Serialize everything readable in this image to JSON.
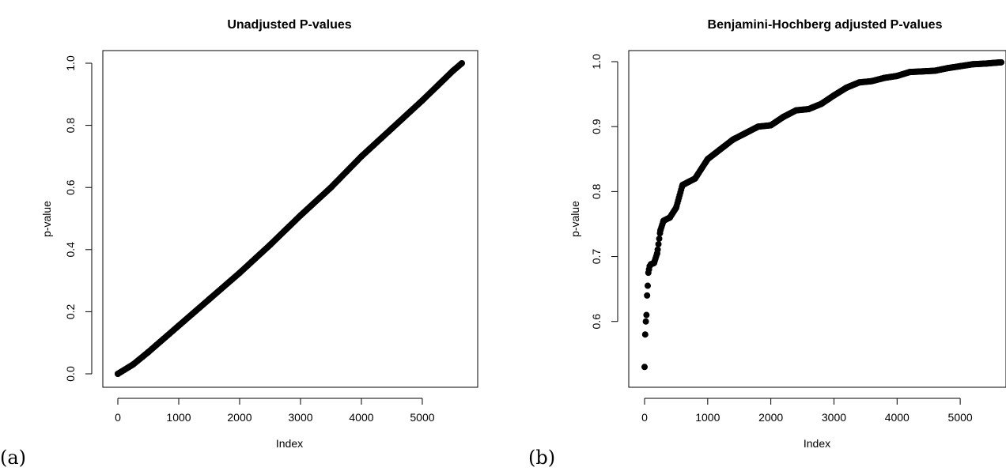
{
  "figure": {
    "panels": [
      {
        "label": "(a)"
      },
      {
        "label": "(b)"
      }
    ]
  },
  "chart_data": [
    {
      "type": "scatter",
      "title": "Unadjusted P-values",
      "xlabel": "Index",
      "ylabel": "p-value",
      "xlim": [
        0,
        5650
      ],
      "ylim": [
        0,
        1.0
      ],
      "x_ticks": [
        0,
        1000,
        2000,
        3000,
        4000,
        5000
      ],
      "y_ticks": [
        0.0,
        0.2,
        0.4,
        0.6,
        0.8,
        1.0
      ],
      "x_tick_labels": [
        "0",
        "1000",
        "2000",
        "3000",
        "4000",
        "5000"
      ],
      "y_tick_labels": [
        "0.0",
        "0.2",
        "0.4",
        "0.6",
        "0.8",
        "1.0"
      ],
      "marker_color": "#000000",
      "n_points": 5650,
      "series": [
        {
          "x": [
            0,
            250,
            500,
            1000,
            1500,
            2000,
            2500,
            3000,
            3500,
            4000,
            4500,
            5000,
            5500,
            5650
          ],
          "y": [
            0.0,
            0.03,
            0.07,
            0.155,
            0.24,
            0.325,
            0.415,
            0.51,
            0.6,
            0.7,
            0.79,
            0.88,
            0.975,
            1.0
          ]
        }
      ]
    },
    {
      "type": "scatter",
      "title": "Benjamini-Hochberg adjusted P-values",
      "xlabel": "Index",
      "ylabel": "p-value",
      "xlim": [
        0,
        5650
      ],
      "ylim": [
        0.52,
        1.0
      ],
      "x_ticks": [
        0,
        1000,
        2000,
        3000,
        4000,
        5000
      ],
      "y_ticks": [
        0.6,
        0.7,
        0.8,
        0.9,
        1.0
      ],
      "x_tick_labels": [
        "0",
        "1000",
        "2000",
        "3000",
        "4000",
        "5000"
      ],
      "y_tick_labels": [
        "0.6",
        "0.7",
        "0.8",
        "0.9",
        "1.0"
      ],
      "marker_color": "#000000",
      "series": [
        {
          "x": [
            0,
            10,
            20,
            30,
            40,
            50,
            60,
            70,
            80,
            100,
            150,
            200,
            250,
            300,
            400,
            500,
            600,
            700,
            800,
            1000,
            1200,
            1400,
            1600,
            1800,
            2000,
            2200,
            2400,
            2600,
            2800,
            3000,
            3200,
            3400,
            3600,
            3800,
            4000,
            4200,
            4400,
            4600,
            4800,
            5000,
            5200,
            5400,
            5650
          ],
          "y": [
            0.53,
            0.58,
            0.6,
            0.61,
            0.64,
            0.655,
            0.675,
            0.68,
            0.685,
            0.688,
            0.69,
            0.705,
            0.74,
            0.755,
            0.76,
            0.775,
            0.81,
            0.815,
            0.82,
            0.85,
            0.865,
            0.88,
            0.89,
            0.9,
            0.902,
            0.915,
            0.925,
            0.927,
            0.935,
            0.948,
            0.96,
            0.968,
            0.97,
            0.975,
            0.978,
            0.984,
            0.985,
            0.986,
            0.99,
            0.993,
            0.996,
            0.997,
            0.999
          ]
        }
      ]
    }
  ]
}
